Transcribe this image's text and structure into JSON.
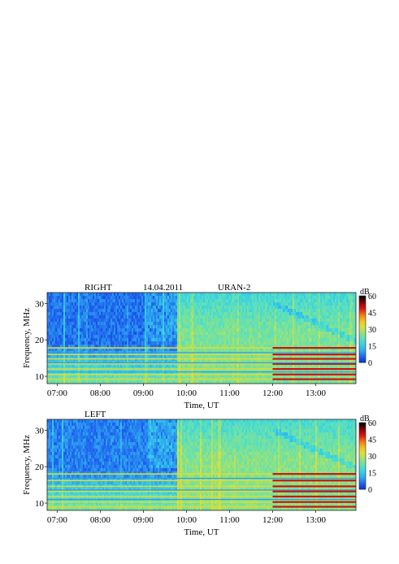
{
  "chart_data": [
    {
      "type": "heatmap",
      "panel": "RIGHT",
      "header": {
        "label": "RIGHT",
        "date": "14.04.2011",
        "instrument": "URAN-2"
      },
      "xlabel": "Time, UT",
      "ylabel": "Frequency, MHz",
      "x_ticks": [
        "07:00",
        "08:00",
        "09:00",
        "10:00",
        "11:00",
        "12:00",
        "13:00"
      ],
      "y_ticks": [
        10,
        20,
        30
      ],
      "xlim": [
        "06:46",
        "13:56"
      ],
      "ylim": [
        8,
        33
      ],
      "colorbar": {
        "unit": "dB",
        "ticks": [
          0,
          15,
          30,
          45,
          60
        ],
        "range": [
          0,
          60
        ]
      },
      "features": {
        "quiet_until": "09:45",
        "quiet_level_db": 7,
        "active_level_db": 25,
        "bright_bands_mhz": [
          9.2,
          10.5,
          12.0,
          13.4,
          14.8,
          16.0,
          17.8
        ],
        "dark_bands_mhz": [
          11.2,
          13.7,
          16.5
        ],
        "bands_intensify_after": "12:00"
      }
    },
    {
      "type": "heatmap",
      "panel": "LEFT",
      "header": {
        "label": "LEFT"
      },
      "xlabel": "Time, UT",
      "ylabel": "Frequency, MHz",
      "x_ticks": [
        "07:00",
        "08:00",
        "09:00",
        "10:00",
        "11:00",
        "12:00",
        "13:00"
      ],
      "y_ticks": [
        10,
        20,
        30
      ],
      "xlim": [
        "06:46",
        "13:56"
      ],
      "ylim": [
        8,
        33
      ],
      "colorbar": {
        "unit": "dB",
        "ticks": [
          0,
          15,
          30,
          45,
          60
        ],
        "range": [
          0,
          60
        ]
      },
      "features": {
        "quiet_until": "09:45",
        "quiet_level_db": 8,
        "active_level_db": 26,
        "bright_bands_mhz": [
          9.0,
          10.3,
          11.8,
          13.2,
          14.6,
          16.2,
          18.0
        ],
        "dark_bands_mhz": [
          11.0,
          13.6,
          16.8
        ],
        "bands_intensify_after": "12:00"
      }
    }
  ],
  "colors": {
    "colormap": [
      "#0a2cc8",
      "#1e5fef",
      "#2ea6f0",
      "#36cfe6",
      "#5be0bd",
      "#93e27c",
      "#d8e23a",
      "#f3c21e",
      "#f07a10",
      "#e01212",
      "#8a0505",
      "#000000"
    ],
    "text": "#111111",
    "axis": "#222222"
  }
}
